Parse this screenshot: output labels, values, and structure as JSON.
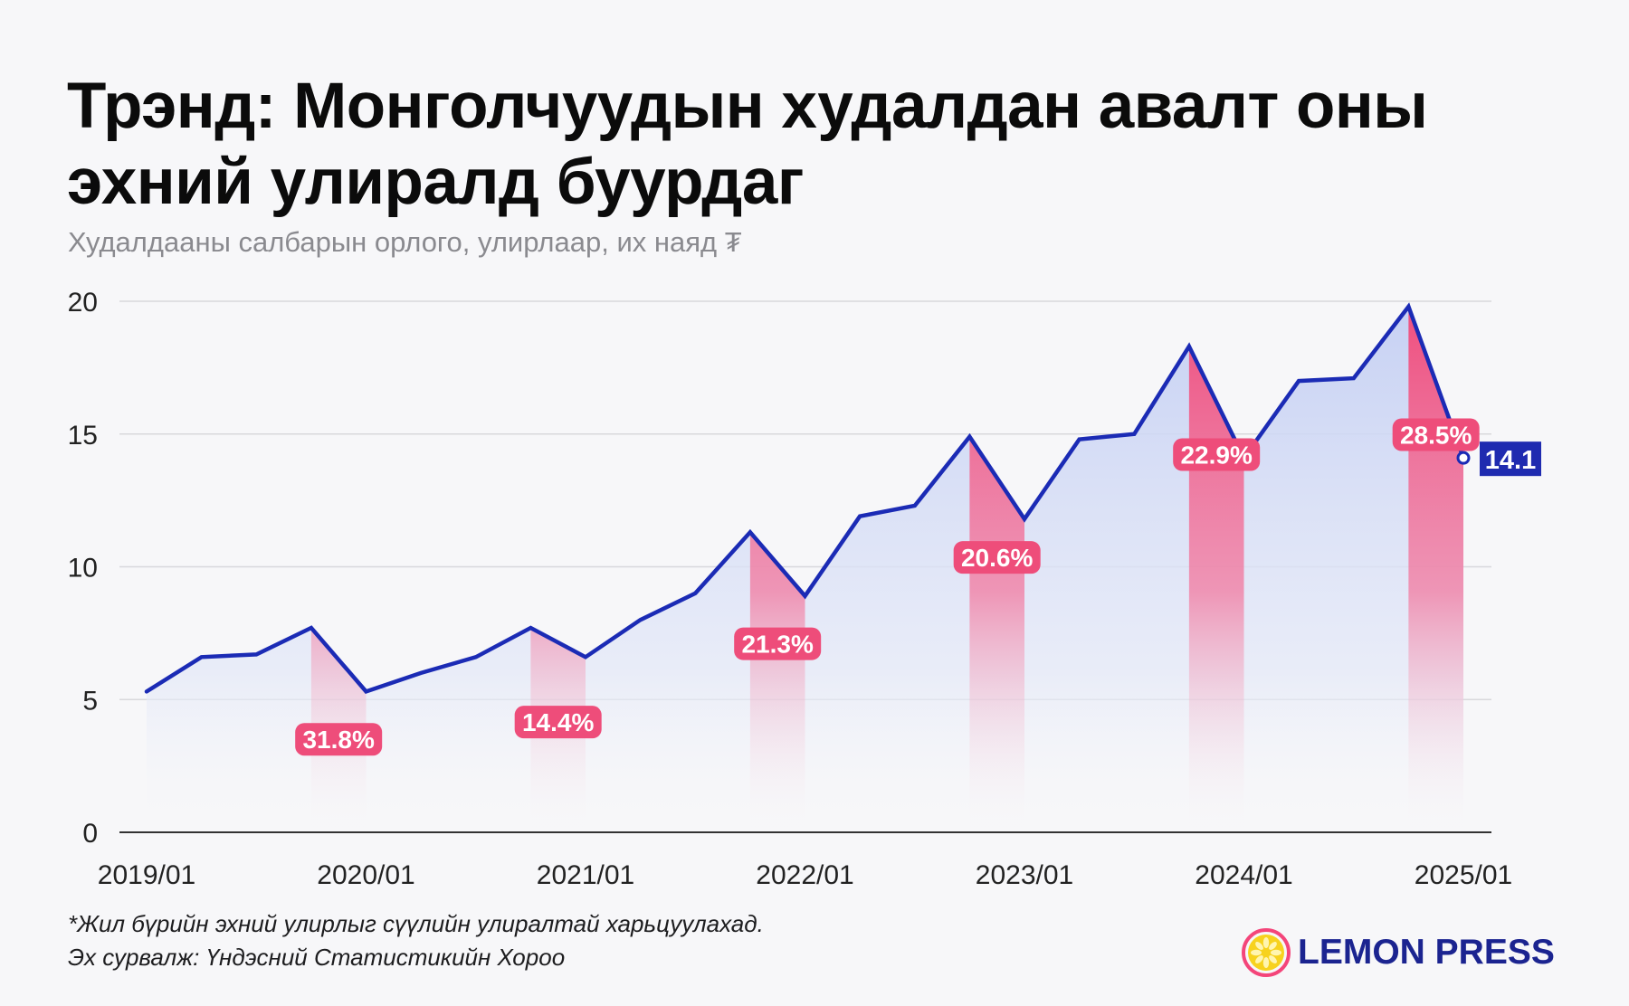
{
  "title": "Трэнд: Монголчуудын худалдан авалт оны эхний улиралд буурдаг",
  "subtitle": "Худалдааны салбарын орлого, улирлаар, их наяд ₮",
  "footnote": "*Жил бүрийн эхний улирлыг сүүлийн улиралтай харьцуулахад.",
  "source": "Эх сурвалж: Үндэсний Статистикийн Хороо",
  "logo_text": "LEMON PRESS",
  "colors": {
    "line": "#1b2bb5",
    "area": "#c9d3f3",
    "drop": "#f0608a",
    "label_bg": "#ee4d7a",
    "end_label_bg": "#1f2bb0",
    "logo": "#1b2490",
    "lemon_ring": "#f4457a",
    "lemon": "#f7d21e"
  },
  "chart_data": {
    "type": "line",
    "x": [
      "2019/01",
      "2019/02",
      "2019/03",
      "2019/04",
      "2020/01",
      "2020/02",
      "2020/03",
      "2020/04",
      "2021/01",
      "2021/02",
      "2021/03",
      "2021/04",
      "2022/01",
      "2022/02",
      "2022/03",
      "2022/04",
      "2023/01",
      "2023/02",
      "2023/03",
      "2023/04",
      "2024/01",
      "2024/02",
      "2024/03",
      "2024/04",
      "2025/01"
    ],
    "values": [
      5.3,
      6.6,
      6.7,
      7.7,
      5.3,
      6.0,
      6.6,
      7.7,
      6.6,
      8.0,
      9.0,
      11.3,
      8.9,
      11.9,
      12.3,
      14.9,
      11.8,
      14.8,
      15.0,
      18.3,
      14.1,
      17.0,
      17.1,
      19.8,
      14.1
    ],
    "ylim": [
      0,
      20
    ],
    "yticks": [
      "0",
      "5",
      "10",
      "15",
      "20"
    ],
    "xtick_labels": [
      "2019/01",
      "2020/01",
      "2021/01",
      "2022/01",
      "2023/01",
      "2024/01",
      "2025/01"
    ],
    "drops": [
      {
        "from": "2019/04",
        "to": "2020/01",
        "label": "31.8%"
      },
      {
        "from": "2020/04",
        "to": "2021/01",
        "label": "14.4%"
      },
      {
        "from": "2021/04",
        "to": "2022/01",
        "label": "21.3%"
      },
      {
        "from": "2022/04",
        "to": "2023/01",
        "label": "20.6%"
      },
      {
        "from": "2023/04",
        "to": "2024/01",
        "label": "22.9%"
      },
      {
        "from": "2024/04",
        "to": "2025/01",
        "label": "28.5%"
      }
    ],
    "end_label": "14.1",
    "grid": true
  }
}
